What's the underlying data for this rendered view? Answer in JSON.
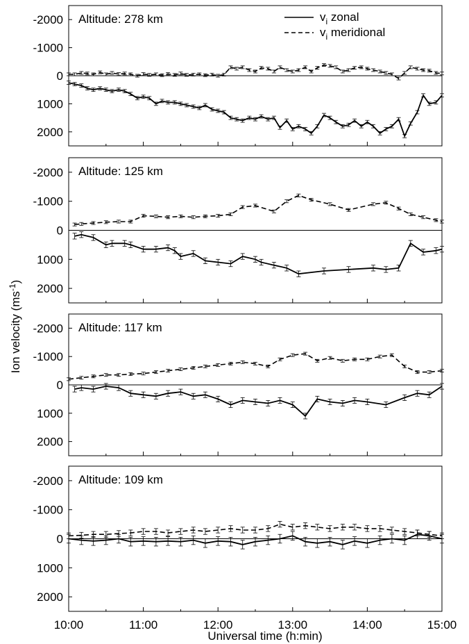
{
  "chart_data": {
    "type": "line",
    "ylabel_prefix": "Ion velocity (ms",
    "ylabel_exp": "-1",
    "ylabel_suffix": ")",
    "xlabel": "Universal time (h:min)",
    "x_ticks": [
      "10:00",
      "11:00",
      "12:00",
      "13:00",
      "14:00",
      "15:00"
    ],
    "x_range_hours": [
      10,
      15
    ],
    "y_ticks": [
      "-2000",
      "-1000",
      "0",
      "1000",
      "2000"
    ],
    "y_range": [
      -2500,
      2500
    ],
    "y_axis_inverted": true,
    "legend": [
      {
        "sym": "v",
        "sub": "i",
        "text": " zonal",
        "style": "solid"
      },
      {
        "sym": "v",
        "sub": "i",
        "text": " meridional",
        "style": "dashed"
      }
    ],
    "panels": [
      {
        "label": "Altitude: 278 km",
        "zonal": {
          "t": [
            10.0,
            10.08,
            10.17,
            10.25,
            10.33,
            10.42,
            10.5,
            10.58,
            10.67,
            10.75,
            10.83,
            10.92,
            11.0,
            11.08,
            11.17,
            11.25,
            11.33,
            11.42,
            11.5,
            11.58,
            11.67,
            11.75,
            11.83,
            11.92,
            12.0,
            12.08,
            12.17,
            12.25,
            12.33,
            12.42,
            12.5,
            12.58,
            12.67,
            12.75,
            12.83,
            12.92,
            13.0,
            13.08,
            13.17,
            13.25,
            13.33,
            13.42,
            13.5,
            13.58,
            13.67,
            13.75,
            13.83,
            13.92,
            14.0,
            14.08,
            14.17,
            14.25,
            14.33,
            14.42,
            14.5,
            14.58,
            14.67,
            14.75,
            14.83,
            14.92,
            15.0
          ],
          "v": [
            250,
            300,
            350,
            450,
            500,
            450,
            500,
            550,
            500,
            550,
            650,
            800,
            750,
            800,
            1000,
            900,
            950,
            950,
            1000,
            1050,
            1100,
            1150,
            1050,
            1200,
            1250,
            1300,
            1500,
            1550,
            1600,
            1500,
            1550,
            1450,
            1550,
            1500,
            1850,
            1600,
            1900,
            1800,
            1900,
            2050,
            1800,
            1400,
            1500,
            1650,
            1800,
            1750,
            1600,
            1800,
            1650,
            1800,
            2050,
            1900,
            1800,
            1550,
            2150,
            1700,
            1300,
            700,
            1000,
            950,
            700
          ],
          "err": 60
        },
        "meridional": {
          "t": [
            10.0,
            10.08,
            10.17,
            10.25,
            10.33,
            10.42,
            10.5,
            10.58,
            10.67,
            10.75,
            10.83,
            10.92,
            11.0,
            11.08,
            11.17,
            11.25,
            11.33,
            11.42,
            11.5,
            11.58,
            11.67,
            11.75,
            11.83,
            11.92,
            12.0,
            12.08,
            12.17,
            12.25,
            12.33,
            12.42,
            12.5,
            12.58,
            12.67,
            12.75,
            12.83,
            12.92,
            13.0,
            13.08,
            13.17,
            13.25,
            13.33,
            13.42,
            13.5,
            13.58,
            13.67,
            13.75,
            13.83,
            13.92,
            14.0,
            14.08,
            14.17,
            14.25,
            14.33,
            14.42,
            14.5,
            14.58,
            14.67,
            14.75,
            14.83,
            14.92,
            15.0
          ],
          "v": [
            -50,
            -50,
            -100,
            -80,
            -50,
            -120,
            -50,
            -100,
            -60,
            -80,
            -50,
            0,
            -60,
            -30,
            -50,
            -20,
            -60,
            -30,
            -80,
            -30,
            -40,
            -50,
            -20,
            -40,
            0,
            -40,
            -300,
            -250,
            -300,
            -200,
            -150,
            -280,
            -250,
            -150,
            -300,
            -200,
            -150,
            -200,
            -300,
            -150,
            -280,
            -380,
            -350,
            -300,
            -150,
            -200,
            -280,
            -300,
            -250,
            -200,
            -150,
            -100,
            -50,
            100,
            -100,
            -300,
            -250,
            -200,
            -180,
            -100,
            -80
          ],
          "err": 50
        }
      },
      {
        "label": "Altitude: 125 km",
        "zonal": {
          "t": [
            10.08,
            10.17,
            10.33,
            10.5,
            10.58,
            10.75,
            10.83,
            11.0,
            11.17,
            11.33,
            11.42,
            11.5,
            11.67,
            11.83,
            12.0,
            12.17,
            12.33,
            12.5,
            12.58,
            12.75,
            12.92,
            13.08,
            13.42,
            13.75,
            14.08,
            14.25,
            14.42,
            14.58,
            14.75,
            14.92,
            15.0
          ],
          "v": [
            200,
            150,
            250,
            500,
            450,
            450,
            500,
            650,
            650,
            600,
            700,
            900,
            800,
            1050,
            1100,
            1150,
            900,
            1000,
            1100,
            1200,
            1300,
            1500,
            1400,
            1350,
            1300,
            1350,
            1300,
            450,
            750,
            700,
            650
          ],
          "err": 100
        },
        "meridional": {
          "t": [
            10.08,
            10.17,
            10.33,
            10.5,
            10.67,
            10.83,
            11.0,
            11.17,
            11.33,
            11.5,
            11.67,
            11.83,
            12.0,
            12.17,
            12.33,
            12.5,
            12.75,
            12.92,
            13.08,
            13.25,
            13.5,
            13.75,
            14.08,
            14.25,
            14.42,
            14.58,
            14.75,
            14.92,
            15.0
          ],
          "v": [
            -200,
            -220,
            -250,
            -280,
            -300,
            -300,
            -500,
            -480,
            -450,
            -480,
            -450,
            -480,
            -500,
            -550,
            -800,
            -850,
            -650,
            -1000,
            -1200,
            -1050,
            -900,
            -700,
            -900,
            -950,
            -750,
            -550,
            -450,
            -350,
            -300
          ],
          "err": 50
        }
      },
      {
        "label": "Altitude: 117 km",
        "zonal": {
          "t": [
            10.08,
            10.17,
            10.33,
            10.5,
            10.67,
            10.83,
            11.0,
            11.17,
            11.33,
            11.5,
            11.67,
            11.83,
            12.0,
            12.17,
            12.33,
            12.5,
            12.67,
            12.83,
            13.0,
            13.17,
            13.33,
            13.5,
            13.67,
            13.83,
            14.0,
            14.25,
            14.5,
            14.67,
            14.83,
            15.0
          ],
          "v": [
            150,
            100,
            150,
            50,
            100,
            300,
            350,
            400,
            300,
            250,
            400,
            350,
            500,
            700,
            550,
            600,
            650,
            550,
            700,
            1100,
            500,
            600,
            650,
            550,
            600,
            700,
            450,
            300,
            350,
            50
          ],
          "err": 100
        },
        "meridional": {
          "t": [
            10.0,
            10.17,
            10.33,
            10.5,
            10.67,
            10.83,
            11.0,
            11.17,
            11.33,
            11.5,
            11.67,
            11.83,
            12.0,
            12.17,
            12.33,
            12.5,
            12.67,
            12.83,
            13.0,
            13.17,
            13.33,
            13.5,
            13.67,
            13.83,
            14.0,
            14.17,
            14.33,
            14.5,
            14.67,
            14.83,
            15.0
          ],
          "v": [
            -200,
            -250,
            -300,
            -350,
            -350,
            -380,
            -400,
            -450,
            -500,
            -550,
            -600,
            -650,
            -700,
            -750,
            -800,
            -750,
            -650,
            -900,
            -1050,
            -1100,
            -850,
            -950,
            -850,
            -900,
            -900,
            -1000,
            -1050,
            -650,
            -450,
            -450,
            -500
          ],
          "err": 50
        }
      },
      {
        "label": "Altitude: 109 km",
        "zonal": {
          "t": [
            10.0,
            10.17,
            10.33,
            10.5,
            10.67,
            10.83,
            11.0,
            11.17,
            11.33,
            11.5,
            11.67,
            11.83,
            12.0,
            12.17,
            12.33,
            12.5,
            12.67,
            12.83,
            13.0,
            13.17,
            13.33,
            13.5,
            13.67,
            13.83,
            14.0,
            14.17,
            14.33,
            14.5,
            14.67,
            14.83,
            15.0
          ],
          "v": [
            0,
            50,
            80,
            50,
            0,
            100,
            80,
            100,
            80,
            100,
            50,
            150,
            80,
            100,
            200,
            100,
            50,
            0,
            -100,
            100,
            150,
            100,
            200,
            80,
            150,
            50,
            0,
            50,
            -150,
            -100,
            0
          ],
          "err": 150
        },
        "meridional": {
          "t": [
            10.0,
            10.17,
            10.33,
            10.5,
            10.67,
            10.83,
            11.0,
            11.17,
            11.33,
            11.5,
            11.67,
            11.83,
            12.0,
            12.17,
            12.33,
            12.5,
            12.67,
            12.83,
            13.0,
            13.17,
            13.33,
            13.5,
            13.67,
            13.83,
            14.0,
            14.17,
            14.33,
            14.5,
            14.67,
            14.83,
            15.0
          ],
          "v": [
            -100,
            -120,
            -150,
            -150,
            -180,
            -200,
            -250,
            -250,
            -200,
            -250,
            -300,
            -250,
            -300,
            -350,
            -300,
            -300,
            -350,
            -500,
            -400,
            -450,
            -400,
            -350,
            -400,
            -400,
            -350,
            -350,
            -300,
            -250,
            -200,
            -150,
            -100
          ],
          "err": 100
        }
      }
    ]
  }
}
